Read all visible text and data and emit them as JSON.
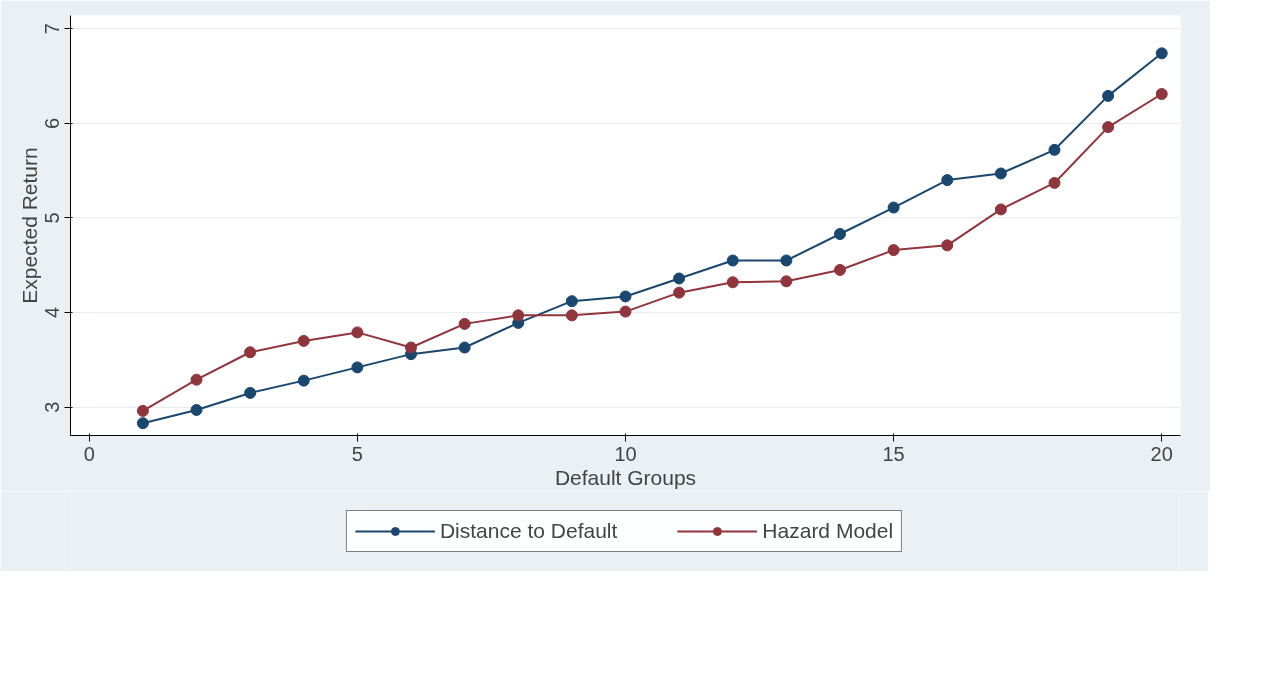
{
  "chart_data": {
    "type": "line",
    "xlabel": "Default Groups",
    "ylabel": "Expected Return",
    "x": [
      1,
      2,
      3,
      4,
      5,
      6,
      7,
      8,
      9,
      10,
      11,
      12,
      13,
      14,
      15,
      16,
      17,
      18,
      19,
      20
    ],
    "series": [
      {
        "name": "Distance to Default",
        "color": "#1a476f",
        "values": [
          2.83,
          2.97,
          3.15,
          3.28,
          3.42,
          3.56,
          3.63,
          3.89,
          4.12,
          4.17,
          4.36,
          4.55,
          4.55,
          4.83,
          5.11,
          5.4,
          5.47,
          5.72,
          6.29,
          6.74
        ]
      },
      {
        "name": "Hazard Model",
        "color": "#90353b",
        "values": [
          2.96,
          3.29,
          3.58,
          3.7,
          3.79,
          3.63,
          3.88,
          3.97,
          3.97,
          4.01,
          4.21,
          4.32,
          4.33,
          4.45,
          4.66,
          4.71,
          5.09,
          5.37,
          5.96,
          6.31
        ]
      }
    ],
    "xlim": [
      -0.35,
      20.35
    ],
    "ylim": [
      2.7,
      7.14
    ],
    "xticks": [
      0,
      5,
      10,
      15,
      20
    ],
    "yticks": [
      3,
      4,
      5,
      6,
      7
    ],
    "grid": "y",
    "legend": "bottom",
    "marker": "circle",
    "line_style": "solid"
  }
}
